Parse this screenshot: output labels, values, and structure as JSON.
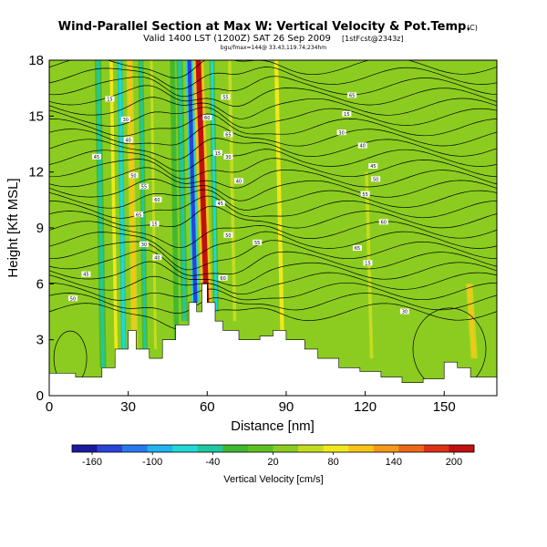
{
  "chart_data": {
    "type": "heatmap",
    "title": "Wind-Parallel Section at Max W: Vertical Velocity & Pot.Temp.",
    "title_mark": "(C)",
    "subtitle": "Valid 1400 LST (1200Z) SAT 26 Sep 2009",
    "subtitle_tag": "[1stFcst@2343z]",
    "location_line": "bgu/fmax=144@ 33.43,119.74;234hm",
    "xlabel": "Distance [nm]",
    "ylabel": "Height [Kft MSL]",
    "xlim": [
      0,
      170
    ],
    "ylim": [
      0,
      18
    ],
    "x_ticks": [
      "0",
      "30",
      "60",
      "90",
      "120",
      "150"
    ],
    "x_tick_values": [
      0,
      30,
      60,
      90,
      120,
      150
    ],
    "y_ticks": [
      "0",
      "3",
      "6",
      "9",
      "12",
      "15",
      "18"
    ],
    "y_tick_values": [
      0,
      3,
      6,
      9,
      12,
      15,
      18
    ],
    "colorbar": {
      "label": "Vertical Velocity [cm/s]",
      "tick_labels": [
        "-160",
        "-100",
        "-40",
        "20",
        "80",
        "140",
        "200"
      ],
      "tick_values": [
        -160,
        -100,
        -40,
        20,
        80,
        140,
        200
      ],
      "range": [
        -180,
        220
      ],
      "colors": [
        "#1a1aa0",
        "#2a44d8",
        "#2a78f0",
        "#20b4f0",
        "#20d8d8",
        "#20c8a0",
        "#40b830",
        "#5cc020",
        "#8ccc20",
        "#c4dc20",
        "#f0e81c",
        "#f8c418",
        "#f49a18",
        "#ec6818",
        "#e03018",
        "#c01010"
      ]
    },
    "background_level_cm_s": 20,
    "vertical_velocity_bands": [
      {
        "x": 20,
        "width": 2.5,
        "z_bottom": 1.5,
        "z_top": 18,
        "w": -40
      },
      {
        "x": 25,
        "width": 2.5,
        "z_bottom": 2.0,
        "z_top": 18,
        "w": 80
      },
      {
        "x": 28,
        "width": 2.0,
        "z_bottom": 2.0,
        "z_top": 18,
        "w": -80
      },
      {
        "x": 32,
        "width": 2.5,
        "z_bottom": 2.5,
        "z_top": 18,
        "w": 100
      },
      {
        "x": 36,
        "width": 2.0,
        "z_bottom": 2.5,
        "z_top": 18,
        "w": -40
      },
      {
        "x": 40,
        "width": 2.0,
        "z_bottom": 2.5,
        "z_top": 18,
        "w": 60
      },
      {
        "x": 48,
        "width": 2.0,
        "z_bottom": 3.0,
        "z_top": 18,
        "w": -20
      },
      {
        "x": 51,
        "width": 2.5,
        "z_bottom": 4.0,
        "z_top": 18,
        "w": -40
      },
      {
        "x": 55,
        "width": 3.0,
        "z_bottom": 5.0,
        "z_top": 18,
        "w": -150
      },
      {
        "x": 59,
        "width": 4.0,
        "z_bottom": 5.0,
        "z_top": 18,
        "w": 200
      },
      {
        "x": 63,
        "width": 2.0,
        "z_bottom": 4.5,
        "z_top": 18,
        "w": -60
      },
      {
        "x": 70,
        "width": 2.5,
        "z_bottom": 4.0,
        "z_top": 18,
        "w": 60
      },
      {
        "x": 88,
        "width": 3.0,
        "z_bottom": 3.0,
        "z_top": 18,
        "w": 80
      },
      {
        "x": 122,
        "width": 2.5,
        "z_bottom": 2.0,
        "z_top": 12,
        "w": 60
      },
      {
        "x": 161,
        "width": 2.5,
        "z_bottom": 2.0,
        "z_top": 6,
        "w": 100
      }
    ],
    "terrain_kft": [
      [
        0,
        1.2
      ],
      [
        10,
        1.0
      ],
      [
        20,
        1.5
      ],
      [
        25,
        2.5
      ],
      [
        30,
        3.5
      ],
      [
        33,
        2.5
      ],
      [
        38,
        2.0
      ],
      [
        43,
        3.0
      ],
      [
        48,
        3.8
      ],
      [
        53,
        5.0
      ],
      [
        56,
        4.5
      ],
      [
        58,
        6.0
      ],
      [
        60,
        5.0
      ],
      [
        63,
        4.0
      ],
      [
        66,
        3.5
      ],
      [
        72,
        3.0
      ],
      [
        80,
        3.2
      ],
      [
        85,
        3.5
      ],
      [
        90,
        3.0
      ],
      [
        97,
        2.5
      ],
      [
        102,
        2.0
      ],
      [
        110,
        1.5
      ],
      [
        118,
        1.3
      ],
      [
        126,
        1.0
      ],
      [
        134,
        0.7
      ],
      [
        142,
        0.9
      ],
      [
        150,
        1.8
      ],
      [
        155,
        1.5
      ],
      [
        160,
        1.0
      ],
      [
        170,
        0.8
      ]
    ],
    "potential_temperature_contour_labels": [
      "15",
      "30",
      "40",
      "45",
      "50",
      "55",
      "60",
      "65"
    ]
  }
}
